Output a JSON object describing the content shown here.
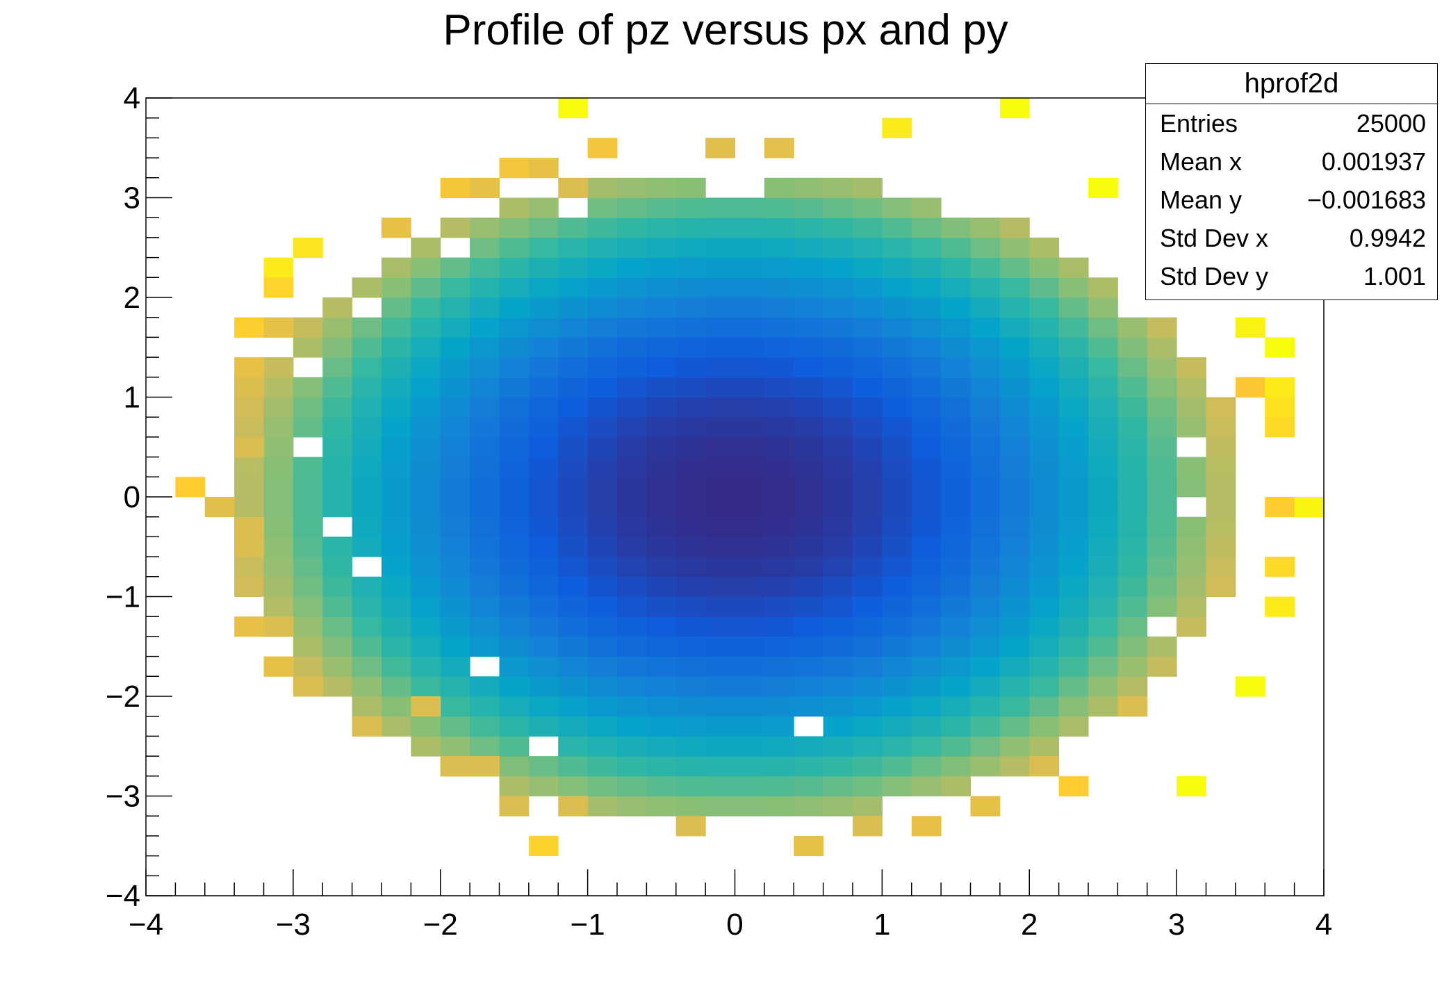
{
  "chart_data": {
    "type": "heatmap",
    "title": "Profile of pz versus px and py",
    "xlim": [
      -4,
      4
    ],
    "ylim": [
      -4,
      4
    ],
    "nbins_x": 40,
    "nbins_y": 40,
    "x_ticks": [
      -4,
      -3,
      -2,
      -1,
      0,
      1,
      2,
      3,
      4
    ],
    "y_ticks": [
      -4,
      -3,
      -2,
      -1,
      0,
      1,
      2,
      3,
      4
    ],
    "x_tick_labels": [
      "−4",
      "−3",
      "−2",
      "−1",
      "0",
      "1",
      "2",
      "3",
      "4"
    ],
    "y_tick_labels": [
      "−4",
      "−3",
      "−2",
      "−1",
      "0",
      "1",
      "2",
      "3",
      "4"
    ],
    "bin_content_model": "value = x^2 + y^2 (mean pz per bin)",
    "radius_filled_max": 3.8,
    "sparse_outer_bins": [
      [
        -1.2,
        3.8
      ],
      [
        1.8,
        3.8
      ],
      [
        1.0,
        3.6
      ],
      [
        -1.0,
        3.4
      ],
      [
        -0.2,
        3.4
      ],
      [
        0.2,
        3.4
      ],
      [
        -1.6,
        3.2
      ],
      [
        -1.4,
        3.2
      ],
      [
        -2.0,
        3.0
      ],
      [
        -1.8,
        3.0
      ],
      [
        -1.2,
        3.0
      ],
      [
        2.4,
        3.0
      ],
      [
        2.8,
        2.8
      ],
      [
        -2.4,
        2.6
      ],
      [
        -3.0,
        2.4
      ],
      [
        3.0,
        2.4
      ],
      [
        -3.2,
        2.2
      ],
      [
        -3.2,
        2.0
      ],
      [
        -3.4,
        1.6
      ],
      [
        -3.2,
        1.6
      ],
      [
        3.4,
        1.6
      ],
      [
        3.6,
        1.4
      ],
      [
        -3.4,
        1.2
      ],
      [
        -3.4,
        1.0
      ],
      [
        3.4,
        1.0
      ],
      [
        3.6,
        1.0
      ],
      [
        3.6,
        0.8
      ],
      [
        3.6,
        0.6
      ],
      [
        -3.4,
        0.4
      ],
      [
        -3.8,
        0.0
      ],
      [
        -3.6,
        -0.2
      ],
      [
        3.6,
        -0.2
      ],
      [
        3.8,
        -0.2
      ],
      [
        -3.4,
        -0.4
      ],
      [
        -3.4,
        -0.6
      ],
      [
        3.6,
        -0.8
      ],
      [
        3.6,
        -1.2
      ],
      [
        -3.4,
        -1.4
      ],
      [
        -3.2,
        -1.4
      ],
      [
        -3.2,
        -1.8
      ],
      [
        -3.0,
        -2.0
      ],
      [
        3.4,
        -2.0
      ],
      [
        -2.6,
        -2.4
      ],
      [
        -2.2,
        -2.2
      ],
      [
        2.6,
        -2.2
      ],
      [
        -2.0,
        -2.8
      ],
      [
        -1.8,
        -2.8
      ],
      [
        2.0,
        -2.8
      ],
      [
        2.2,
        -3.0
      ],
      [
        3.0,
        -3.0
      ],
      [
        -1.6,
        -3.2
      ],
      [
        -1.2,
        -3.2
      ],
      [
        1.6,
        -3.2
      ],
      [
        -0.4,
        -3.4
      ],
      [
        0.8,
        -3.4
      ],
      [
        1.2,
        -3.4
      ],
      [
        -1.4,
        -3.6
      ],
      [
        0.4,
        -3.6
      ]
    ],
    "empty_inner_bins": [
      [
        -2.0,
        2.4
      ],
      [
        -2.6,
        1.8
      ],
      [
        -3.0,
        1.2
      ],
      [
        -3.0,
        0.4
      ],
      [
        -2.8,
        -0.4
      ],
      [
        -2.6,
        -0.8
      ],
      [
        -1.8,
        -1.8
      ],
      [
        0.4,
        -2.4
      ],
      [
        -1.4,
        -2.6
      ],
      [
        2.8,
        -1.4
      ],
      [
        3.0,
        0.4
      ],
      [
        3.0,
        -0.2
      ],
      [
        2.6,
        1.8
      ],
      [
        1.4,
        2.8
      ],
      [
        -0.2,
        3.0
      ],
      [
        0.0,
        3.0
      ],
      [
        -1.2,
        2.8
      ]
    ],
    "colors": {
      "colormap": [
        "#352a87",
        "#0f5cdd",
        "#1481d6",
        "#06a4ca",
        "#2eb7a4",
        "#87bf77",
        "#d1bb59",
        "#fec832",
        "#f9fb0e"
      ],
      "axis": "#000000",
      "background": "#ffffff"
    }
  },
  "stats": {
    "title": "hprof2d",
    "rows": [
      {
        "label": "Entries",
        "value": "25000"
      },
      {
        "label": "Mean x",
        "value": "0.001937"
      },
      {
        "label": "Mean y",
        "value": "−0.001683"
      },
      {
        "label": "Std Dev x",
        "value": "0.9942"
      },
      {
        "label": "Std Dev y",
        "value": "1.001"
      }
    ]
  }
}
